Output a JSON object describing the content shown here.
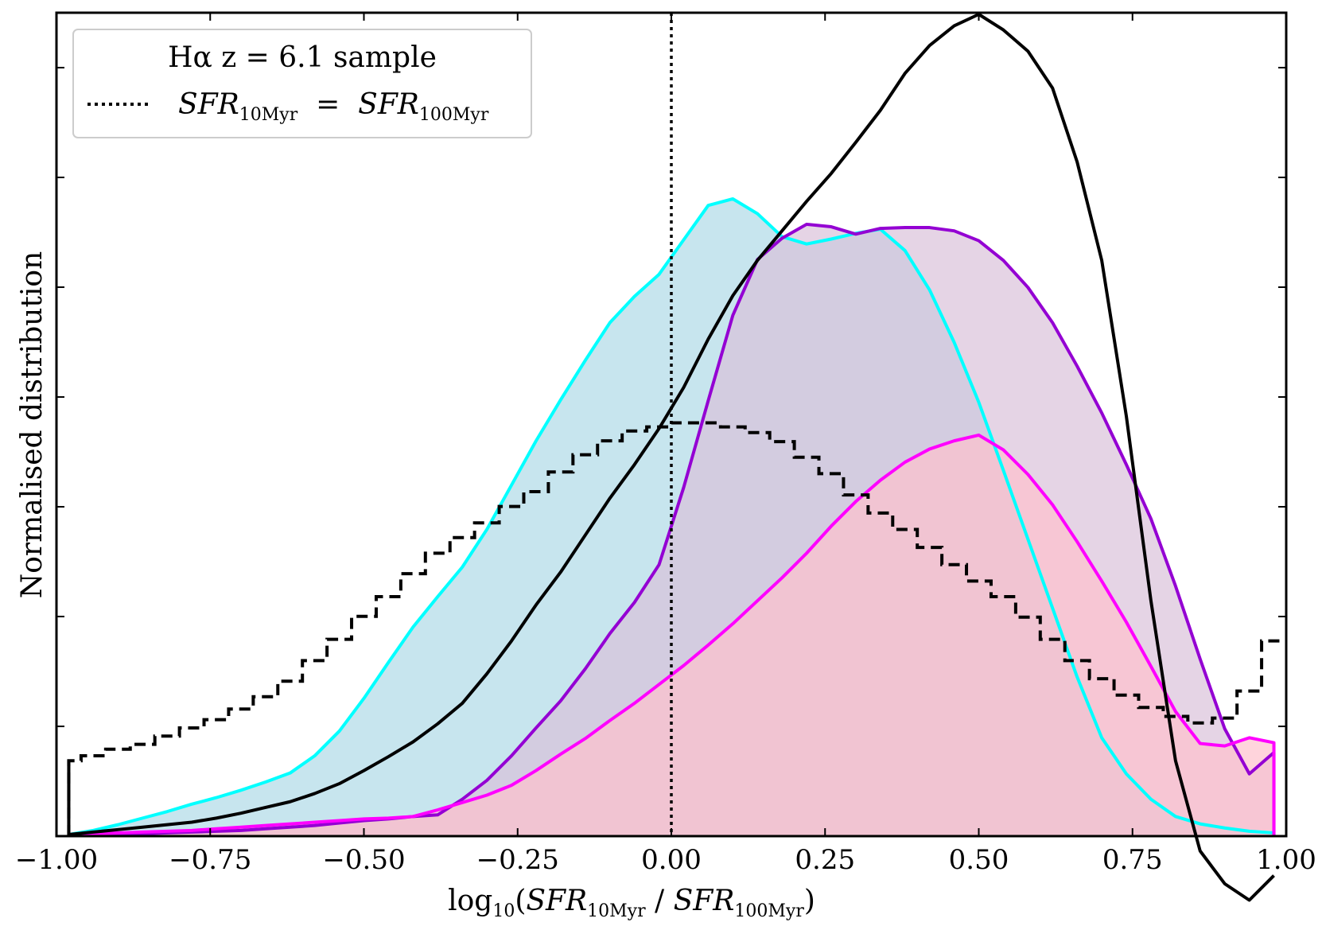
{
  "chart_data": {
    "type": "area",
    "xlabel": {
      "prefix": "log",
      "prefix_sub": "10",
      "open": "(",
      "num": "SFR",
      "num_sub": "10Myr",
      "sep": " / ",
      "den": "SFR",
      "den_sub": "100Myr",
      "close": ")"
    },
    "ylabel": "Normalised distribution",
    "xlim": [
      -1.0,
      1.0
    ],
    "ylim": [
      0,
      1.0
    ],
    "x_ticks": [
      "−1.00",
      "−0.75",
      "−0.50",
      "−0.25",
      "0.00",
      "0.25",
      "0.50",
      "0.75",
      "1.00"
    ],
    "x_tick_values": [
      -1.0,
      -0.75,
      -0.5,
      -0.25,
      0.0,
      0.25,
      0.5,
      0.75,
      1.0
    ],
    "y_tick_values": [
      0.1333,
      0.2667,
      0.4,
      0.5333,
      0.6667,
      0.8,
      0.9333
    ],
    "y_tick_labels_shown": false,
    "reference_line": {
      "x": 0.0,
      "style": "dotted",
      "color": "#000000"
    },
    "legend": {
      "placement": "top-left",
      "entries": [
        {
          "label": "Hα z  =  6.1 sample",
          "style": "none"
        },
        {
          "label_a": "SFR",
          "sub_a": "10Myr",
          "eq": "  =  ",
          "label_b": "SFR",
          "sub_b": "100Myr",
          "style": "dotted",
          "color": "#000000"
        }
      ]
    },
    "series": [
      {
        "name": "cyan",
        "kind": "filled",
        "line_color": "#00FFFF",
        "fill_color": "#ADD8E6",
        "x": [
          -0.98,
          -0.94,
          -0.9,
          -0.86,
          -0.82,
          -0.78,
          -0.74,
          -0.7,
          -0.66,
          -0.62,
          -0.58,
          -0.54,
          -0.5,
          -0.46,
          -0.42,
          -0.38,
          -0.34,
          -0.3,
          -0.26,
          -0.22,
          -0.18,
          -0.14,
          -0.1,
          -0.06,
          -0.02,
          0.02,
          0.06,
          0.1,
          0.14,
          0.18,
          0.22,
          0.26,
          0.3,
          0.34,
          0.38,
          0.42,
          0.46,
          0.5,
          0.54,
          0.58,
          0.62,
          0.66,
          0.7,
          0.74,
          0.78,
          0.82,
          0.86,
          0.9,
          0.94,
          0.98
        ],
        "y": [
          0.0,
          0.005,
          0.012,
          0.02,
          0.028,
          0.037,
          0.045,
          0.054,
          0.064,
          0.075,
          0.096,
          0.126,
          0.166,
          0.21,
          0.253,
          0.29,
          0.326,
          0.372,
          0.426,
          0.48,
          0.53,
          0.578,
          0.624,
          0.656,
          0.683,
          0.725,
          0.767,
          0.775,
          0.757,
          0.729,
          0.72,
          0.726,
          0.733,
          0.738,
          0.712,
          0.664,
          0.6,
          0.527,
          0.444,
          0.36,
          0.276,
          0.192,
          0.118,
          0.074,
          0.043,
          0.022,
          0.013,
          0.008,
          0.004,
          0.002
        ]
      },
      {
        "name": "purple",
        "kind": "filled",
        "line_color": "#9400D3",
        "fill_color": "#D8BFD8",
        "x": [
          -0.98,
          -0.94,
          -0.9,
          -0.86,
          -0.82,
          -0.78,
          -0.74,
          -0.7,
          -0.66,
          -0.62,
          -0.58,
          -0.54,
          -0.5,
          -0.46,
          -0.42,
          -0.38,
          -0.34,
          -0.3,
          -0.26,
          -0.22,
          -0.18,
          -0.14,
          -0.1,
          -0.06,
          -0.02,
          0.02,
          0.06,
          0.1,
          0.14,
          0.18,
          0.22,
          0.26,
          0.3,
          0.34,
          0.38,
          0.42,
          0.46,
          0.5,
          0.54,
          0.58,
          0.62,
          0.66,
          0.7,
          0.74,
          0.78,
          0.82,
          0.86,
          0.9,
          0.94,
          0.98
        ],
        "y": [
          0.0,
          0.0,
          0.001,
          0.001,
          0.002,
          0.003,
          0.004,
          0.005,
          0.007,
          0.009,
          0.011,
          0.014,
          0.017,
          0.019,
          0.022,
          0.024,
          0.043,
          0.066,
          0.096,
          0.13,
          0.163,
          0.202,
          0.245,
          0.283,
          0.329,
          0.423,
          0.529,
          0.633,
          0.701,
          0.727,
          0.744,
          0.741,
          0.732,
          0.739,
          0.74,
          0.74,
          0.736,
          0.724,
          0.7,
          0.667,
          0.624,
          0.571,
          0.514,
          0.451,
          0.385,
          0.303,
          0.214,
          0.129,
          0.074,
          0.1
        ]
      },
      {
        "name": "magenta",
        "kind": "filled",
        "line_color": "#FF00FF",
        "fill_color": "#FFC0CB",
        "x": [
          -0.98,
          -0.94,
          -0.9,
          -0.86,
          -0.82,
          -0.78,
          -0.74,
          -0.7,
          -0.66,
          -0.62,
          -0.58,
          -0.54,
          -0.5,
          -0.46,
          -0.42,
          -0.38,
          -0.34,
          -0.3,
          -0.26,
          -0.22,
          -0.18,
          -0.14,
          -0.1,
          -0.06,
          -0.02,
          0.02,
          0.06,
          0.1,
          0.14,
          0.18,
          0.22,
          0.26,
          0.3,
          0.34,
          0.38,
          0.42,
          0.46,
          0.5,
          0.54,
          0.58,
          0.62,
          0.66,
          0.7,
          0.74,
          0.78,
          0.82,
          0.86,
          0.9,
          0.94,
          0.98
        ],
        "y": [
          0.0,
          0.001,
          0.002,
          0.003,
          0.004,
          0.005,
          0.007,
          0.009,
          0.011,
          0.013,
          0.015,
          0.017,
          0.019,
          0.02,
          0.022,
          0.03,
          0.039,
          0.048,
          0.06,
          0.078,
          0.098,
          0.117,
          0.139,
          0.16,
          0.183,
          0.206,
          0.231,
          0.257,
          0.285,
          0.313,
          0.343,
          0.376,
          0.406,
          0.432,
          0.454,
          0.47,
          0.48,
          0.487,
          0.469,
          0.439,
          0.402,
          0.357,
          0.309,
          0.259,
          0.205,
          0.15,
          0.111,
          0.108,
          0.118,
          0.112
        ]
      },
      {
        "name": "black-solid",
        "kind": "line",
        "line_color": "#000000",
        "x": [
          -0.98,
          -0.94,
          -0.9,
          -0.86,
          -0.82,
          -0.78,
          -0.74,
          -0.7,
          -0.66,
          -0.62,
          -0.58,
          -0.54,
          -0.5,
          -0.46,
          -0.42,
          -0.38,
          -0.34,
          -0.3,
          -0.26,
          -0.22,
          -0.18,
          -0.14,
          -0.1,
          -0.06,
          -0.02,
          0.02,
          0.06,
          0.1,
          0.14,
          0.18,
          0.22,
          0.26,
          0.3,
          0.34,
          0.38,
          0.42,
          0.46,
          0.5,
          0.54,
          0.58,
          0.62,
          0.66,
          0.7,
          0.74,
          0.78,
          0.82,
          0.86,
          0.9,
          0.94,
          0.98
        ],
        "y": [
          0.0,
          0.003,
          0.006,
          0.009,
          0.012,
          0.015,
          0.02,
          0.026,
          0.033,
          0.04,
          0.05,
          0.062,
          0.078,
          0.095,
          0.113,
          0.135,
          0.16,
          0.196,
          0.236,
          0.28,
          0.32,
          0.365,
          0.41,
          0.451,
          0.495,
          0.545,
          0.604,
          0.657,
          0.7,
          0.736,
          0.772,
          0.806,
          0.844,
          0.883,
          0.928,
          0.962,
          0.986,
          1.0,
          0.981,
          0.955,
          0.91,
          0.82,
          0.7,
          0.51,
          0.285,
          0.09,
          -0.02,
          -0.06,
          -0.08,
          -0.05
        ]
      },
      {
        "name": "black-dashed-histogram",
        "kind": "step",
        "line_color": "#000000",
        "bin_edges": [
          -0.98,
          -0.96,
          -0.92,
          -0.88,
          -0.84,
          -0.8,
          -0.76,
          -0.72,
          -0.68,
          -0.64,
          -0.6,
          -0.56,
          -0.52,
          -0.48,
          -0.44,
          -0.4,
          -0.36,
          -0.32,
          -0.28,
          -0.24,
          -0.2,
          -0.16,
          -0.12,
          -0.08,
          -0.04,
          0.0,
          0.04,
          0.08,
          0.12,
          0.16,
          0.2,
          0.24,
          0.28,
          0.32,
          0.36,
          0.4,
          0.44,
          0.48,
          0.52,
          0.56,
          0.6,
          0.64,
          0.68,
          0.72,
          0.76,
          0.8,
          0.84,
          0.88,
          0.92,
          0.96,
          1.0
        ],
        "values": [
          0.09,
          0.096,
          0.104,
          0.11,
          0.12,
          0.13,
          0.14,
          0.153,
          0.168,
          0.187,
          0.212,
          0.238,
          0.266,
          0.29,
          0.318,
          0.343,
          0.362,
          0.38,
          0.4,
          0.418,
          0.442,
          0.463,
          0.48,
          0.492,
          0.497,
          0.502,
          0.502,
          0.497,
          0.49,
          0.479,
          0.46,
          0.44,
          0.414,
          0.392,
          0.372,
          0.35,
          0.329,
          0.309,
          0.29,
          0.265,
          0.238,
          0.212,
          0.19,
          0.17,
          0.155,
          0.144,
          0.136,
          0.142,
          0.175,
          0.236
        ]
      }
    ]
  }
}
